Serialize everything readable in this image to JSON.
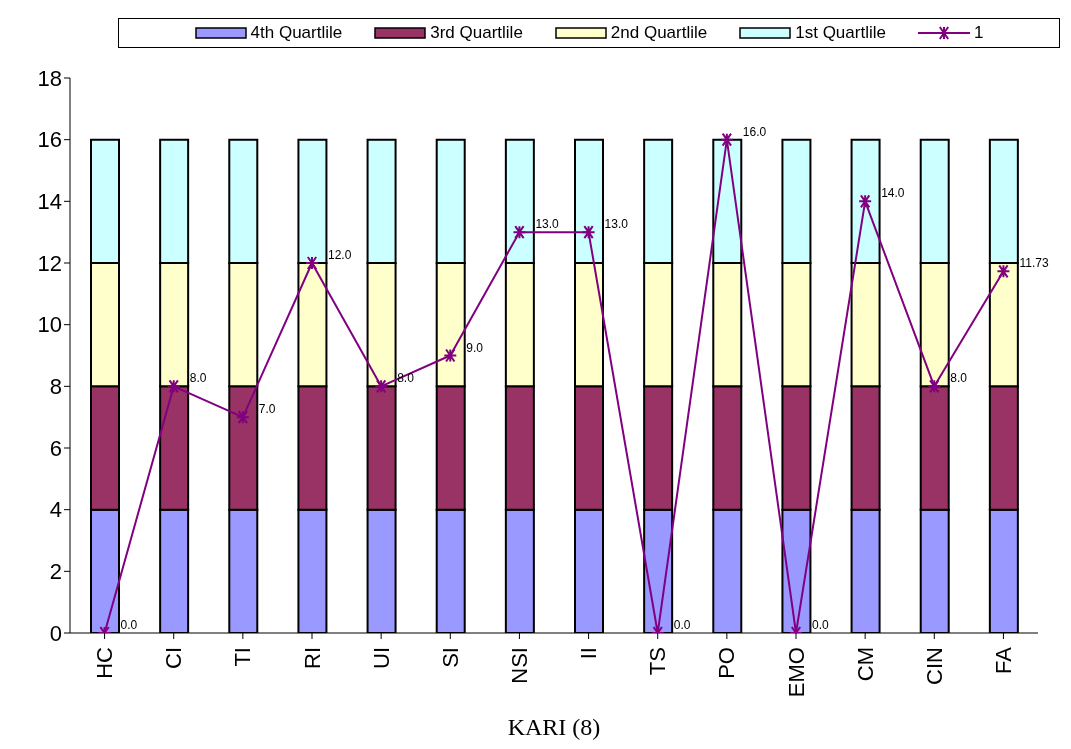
{
  "chart_data": {
    "type": "bar",
    "stacked": true,
    "xlabel": "KARI (8)",
    "categories": [
      "HC",
      "CI",
      "TI",
      "RI",
      "UI",
      "SI",
      "NSI",
      "II",
      "TS",
      "PO",
      "EMO",
      "CM",
      "CIN",
      "FA"
    ],
    "series": [
      {
        "name": "4th Quartlile",
        "color": "#9999ff",
        "values": [
          4,
          4,
          4,
          4,
          4,
          4,
          4,
          4,
          4,
          4,
          4,
          4,
          4,
          4
        ]
      },
      {
        "name": "3rd Quartlile",
        "color": "#993366",
        "values": [
          4,
          4,
          4,
          4,
          4,
          4,
          4,
          4,
          4,
          4,
          4,
          4,
          4,
          4
        ]
      },
      {
        "name": "2nd Quartlile",
        "color": "#ffffcc",
        "values": [
          4,
          4,
          4,
          4,
          4,
          4,
          4,
          4,
          4,
          4,
          4,
          4,
          4,
          4
        ]
      },
      {
        "name": "1st Quartlile",
        "color": "#ccffff",
        "values": [
          4,
          4,
          4,
          4,
          4,
          4,
          4,
          4,
          4,
          4,
          4,
          4,
          4,
          4
        ]
      },
      {
        "name": "1",
        "type": "line",
        "color": "#800080",
        "marker": "cross",
        "values": [
          0,
          8,
          7,
          12,
          8,
          9,
          13,
          13,
          0,
          16,
          0,
          14,
          8,
          11.73
        ],
        "value_labels": [
          "0.0",
          "8.0",
          "7.0",
          "12.0",
          "8.0",
          "9.0",
          "13.0",
          "13.0",
          "0.0",
          "16.0",
          "0.0",
          "14.0",
          "8.0",
          "11.73"
        ]
      }
    ],
    "ylim": [
      0,
      18
    ],
    "yticks": [
      0,
      2,
      4,
      6,
      8,
      10,
      12,
      14,
      16,
      18
    ],
    "legend": "top"
  }
}
